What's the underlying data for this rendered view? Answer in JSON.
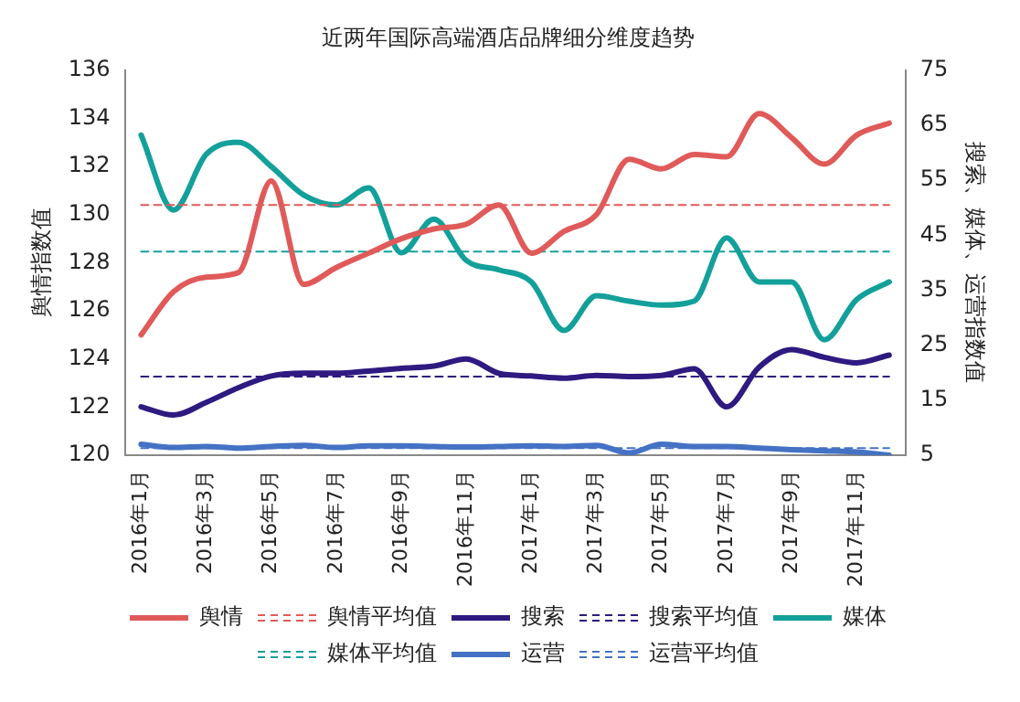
{
  "chart_data": {
    "type": "line",
    "title": "近两年国际高端酒店品牌细分维度趋势",
    "ylabel": "舆情指数值",
    "y2label": "搜索、媒体、运营指数值",
    "categories": [
      "2016年1月",
      null,
      "2016年3月",
      null,
      "2016年5月",
      null,
      "2016年7月",
      null,
      "2016年9月",
      null,
      "2016年11月",
      null,
      "2017年1月",
      null,
      "2017年3月",
      null,
      "2017年5月",
      null,
      "2017年7月",
      null,
      "2017年9月",
      null,
      "2017年11月",
      null
    ],
    "series": [
      {
        "name": "舆情",
        "color": "#e05a5a",
        "values": [
          125,
          126.8,
          127.4,
          127.6,
          131.4,
          127.1,
          127.8,
          128.4,
          129.0,
          129.4,
          129.6,
          130.4,
          128.4,
          129.3,
          130.0,
          132.3,
          131.9,
          132.5,
          132.4,
          134.2,
          133.2,
          132.1,
          133.3,
          133.8
        ]
      },
      {
        "name": "舆情平均值",
        "color": "#e05a5a",
        "line_style": "dashed",
        "values": [
          130.4,
          130.4,
          130.4,
          130.4,
          130.4,
          130.4,
          130.4,
          130.4,
          130.4,
          130.4,
          130.4,
          130.4,
          130.4,
          130.4,
          130.4,
          130.4,
          130.4,
          130.4,
          130.4,
          130.4,
          130.4,
          130.4,
          130.4,
          130.4
        ]
      },
      {
        "name": "搜索",
        "color": "#2e1a80",
        "axis": "y2",
        "values": [
          13.8,
          12.3,
          14.6,
          17.3,
          19.4,
          19.9,
          19.9,
          20.3,
          20.8,
          21.2,
          22.5,
          19.9,
          19.4,
          19.0,
          19.5,
          19.3,
          19.5,
          20.7,
          13.8,
          21.0,
          24.2,
          22.8,
          21.8,
          23.2
        ]
      },
      {
        "name": "搜索平均值",
        "color": "#2e1a80",
        "axis": "y2",
        "line_style": "dashed",
        "values": [
          19.3,
          19.3,
          19.3,
          19.3,
          19.3,
          19.3,
          19.3,
          19.3,
          19.3,
          19.3,
          19.3,
          19.3,
          19.3,
          19.3,
          19.3,
          19.3,
          19.3,
          19.3,
          19.3,
          19.3,
          19.3,
          19.3,
          19.3,
          19.3
        ]
      },
      {
        "name": "媒体",
        "color": "#14a09a",
        "axis": "y2",
        "values": [
          63.2,
          49.6,
          59.7,
          61.9,
          57.5,
          52.3,
          50.5,
          53.6,
          41.8,
          47.9,
          40.4,
          38.7,
          36.5,
          27.7,
          34.0,
          33.0,
          32.3,
          33.0,
          44.5,
          36.5,
          36.5,
          26.0,
          33.3,
          36.5
        ]
      },
      {
        "name": "媒体平均值",
        "color": "#14a09a",
        "axis": "y2",
        "line_style": "dashed",
        "values": [
          42.0,
          42.0,
          42.0,
          42.0,
          42.0,
          42.0,
          42.0,
          42.0,
          42.0,
          42.0,
          42.0,
          42.0,
          42.0,
          42.0,
          42.0,
          42.0,
          42.0,
          42.0,
          42.0,
          42.0,
          42.0,
          42.0,
          42.0,
          42.0
        ]
      },
      {
        "name": "运营",
        "color": "#4472c4",
        "axis": "y2",
        "values": [
          7.0,
          6.4,
          6.6,
          6.3,
          6.6,
          6.8,
          6.4,
          6.7,
          6.7,
          6.6,
          6.5,
          6.6,
          6.7,
          6.6,
          6.8,
          5.4,
          7.0,
          6.6,
          6.6,
          6.3,
          6.0,
          5.8,
          5.6,
          5.0
        ]
      },
      {
        "name": "运营平均值",
        "color": "#4472c4",
        "axis": "y2",
        "line_style": "dashed",
        "values": [
          6.3,
          6.3,
          6.3,
          6.3,
          6.3,
          6.3,
          6.3,
          6.3,
          6.3,
          6.3,
          6.3,
          6.3,
          6.3,
          6.3,
          6.3,
          6.3,
          6.3,
          6.3,
          6.3,
          6.3,
          6.3,
          6.3,
          6.3,
          6.3
        ]
      }
    ],
    "ylim": [
      120,
      136
    ],
    "yticks": [
      120,
      122,
      124,
      126,
      128,
      130,
      132,
      134,
      136
    ],
    "y2lim": [
      5,
      75
    ],
    "y2ticks": [
      5,
      15,
      25,
      35,
      45,
      55,
      65,
      75
    ],
    "grid": false,
    "legend": "bottom",
    "line_style": "solid",
    "marker": "none"
  }
}
